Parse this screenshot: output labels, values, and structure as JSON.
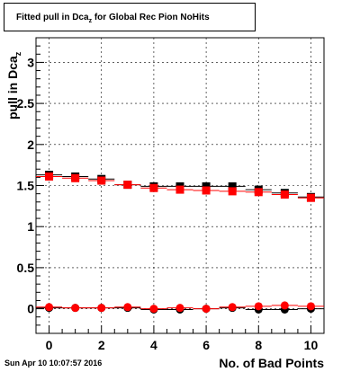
{
  "title": {
    "main": "Fitted pull in Dca",
    "sub": "z",
    "rest": " for Global Rec Pion NoHits"
  },
  "timestamp": "Sun Apr 10 10:07:57 2016",
  "chart_data": {
    "type": "scatter",
    "title": "Fitted pull in Dca_z for Global Rec Pion NoHits",
    "xlabel": "No. of Bad Points",
    "ylabel": "pull in Dca_z",
    "xlim": [
      -0.5,
      10.5
    ],
    "ylim": [
      -0.3,
      3.3
    ],
    "xticks": [
      "0",
      "2",
      "4",
      "6",
      "8",
      "10"
    ],
    "yticks": [
      "0",
      "0.5",
      "1",
      "1.5",
      "2",
      "2.5",
      "3"
    ],
    "grid": true,
    "x": [
      0,
      1,
      2,
      3,
      4,
      5,
      6,
      7,
      8,
      9,
      10
    ],
    "series": [
      {
        "marker": "square",
        "color": "#000000",
        "values": [
          1.63,
          1.61,
          1.58,
          1.51,
          1.49,
          1.49,
          1.49,
          1.49,
          1.45,
          1.41,
          1.36
        ]
      },
      {
        "marker": "square",
        "color": "#ff0000",
        "values": [
          1.61,
          1.59,
          1.56,
          1.51,
          1.47,
          1.45,
          1.44,
          1.43,
          1.42,
          1.39,
          1.35
        ]
      },
      {
        "marker": "circle",
        "color": "#000000",
        "values": [
          0.01,
          0.01,
          0.01,
          0.01,
          -0.01,
          -0.01,
          0.0,
          0.01,
          -0.01,
          -0.01,
          0.0
        ]
      },
      {
        "marker": "circle",
        "color": "#ff0000",
        "values": [
          0.02,
          0.01,
          0.01,
          0.02,
          0.0,
          0.01,
          0.0,
          0.02,
          0.03,
          0.04,
          0.03
        ]
      }
    ]
  }
}
